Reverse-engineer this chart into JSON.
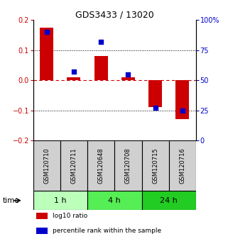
{
  "title": "GDS3433 / 13020",
  "samples": [
    "GSM120710",
    "GSM120711",
    "GSM120648",
    "GSM120708",
    "GSM120715",
    "GSM120716"
  ],
  "log10_ratio": [
    0.175,
    0.01,
    0.08,
    0.01,
    -0.09,
    -0.13
  ],
  "percentile_rank": [
    90,
    57,
    82,
    55,
    27,
    25
  ],
  "bar_color": "#cc0000",
  "dot_color": "#0000cc",
  "ylim_left": [
    -0.2,
    0.2
  ],
  "ylim_right": [
    0,
    100
  ],
  "yticks_left": [
    -0.2,
    -0.1,
    0.0,
    0.1,
    0.2
  ],
  "ytick_labels_right": [
    "0",
    "25",
    "50",
    "75",
    "100%"
  ],
  "time_groups": [
    {
      "label": "1 h",
      "indices": [
        0,
        1
      ],
      "color": "#bbffbb"
    },
    {
      "label": "4 h",
      "indices": [
        2,
        3
      ],
      "color": "#55ee55"
    },
    {
      "label": "24 h",
      "indices": [
        4,
        5
      ],
      "color": "#22cc22"
    }
  ],
  "time_label": "time",
  "legend_items": [
    {
      "color": "#cc0000",
      "label": "log10 ratio"
    },
    {
      "color": "#0000cc",
      "label": "percentile rank within the sample"
    }
  ],
  "bg_color": "#ffffff",
  "sample_box_color": "#d0d0d0",
  "dashed_zero_color": "#cc0000",
  "bar_width": 0.5,
  "dot_size": 18
}
